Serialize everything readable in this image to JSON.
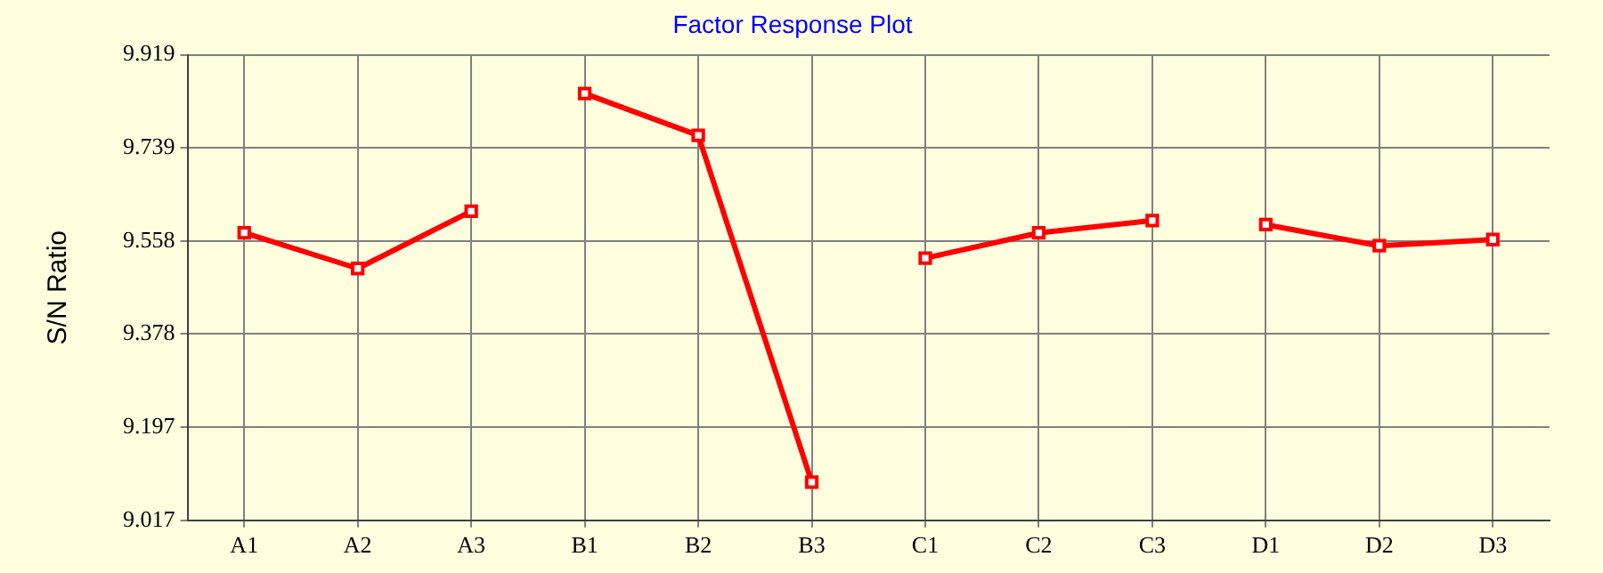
{
  "chart_data": {
    "type": "line",
    "title": "Factor Response Plot",
    "ylabel": "S/N Ratio",
    "categories": [
      "A1",
      "A2",
      "A3",
      "B1",
      "B2",
      "B3",
      "C1",
      "C2",
      "C3",
      "D1",
      "D2",
      "D3"
    ],
    "series": [
      {
        "color": "#ff0000",
        "values": [
          9.574,
          9.505,
          9.616,
          null,
          null,
          null,
          null,
          null,
          null,
          null,
          null,
          null
        ]
      },
      {
        "color": "#ff0000",
        "values": [
          null,
          null,
          null,
          9.844,
          9.763,
          9.091,
          null,
          null,
          null,
          null,
          null,
          null
        ]
      },
      {
        "color": "#ff0000",
        "values": [
          null,
          null,
          null,
          null,
          null,
          null,
          9.525,
          9.574,
          9.598,
          null,
          null,
          null
        ]
      },
      {
        "color": "#ff0000",
        "values": [
          null,
          null,
          null,
          null,
          null,
          null,
          null,
          null,
          null,
          9.59,
          9.549,
          9.561
        ]
      }
    ],
    "ylim": [
      9.017,
      9.919
    ],
    "yticks": [
      9.017,
      9.197,
      9.378,
      9.558,
      9.739,
      9.919
    ],
    "grid": true,
    "legend": false,
    "marker": "square",
    "line_style": "solid"
  }
}
